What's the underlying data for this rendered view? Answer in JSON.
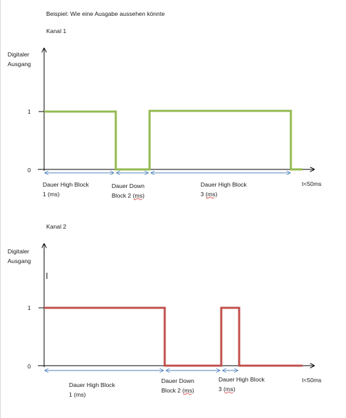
{
  "heading": "Beispiel: Wie eine Ausgabe aussehen könnte",
  "colors": {
    "channel1_signal": "#93b94e",
    "channel2_signal": "#c0504d",
    "axis": "#000000",
    "measure_arrow": "#4f81bd",
    "spellcheck_underline": "#e03030"
  },
  "channels": [
    {
      "title": "Kanal 1",
      "y_axis_label_line1": "Digitaler",
      "y_axis_label_line2": "Ausgang",
      "y_tick_high": "1",
      "y_tick_low": "0",
      "time_limit_label": "t<50ms",
      "signal_levels": [
        1,
        0,
        1,
        0
      ],
      "segments": [
        {
          "label_line1": "Dauer High Block",
          "label_line2": "1 (ms)"
        },
        {
          "label_line1": "Dauer Down",
          "label_line2": "Block 2 (ms)"
        },
        {
          "label_line1": "Dauer High Block",
          "label_line2": "3 (ms)"
        }
      ]
    },
    {
      "title": "Kanal 2",
      "y_axis_label_line1": "Digitaler",
      "y_axis_label_line2": "Ausgang",
      "y_tick_high": "1",
      "y_tick_low": "0",
      "time_limit_label": "t<50ms",
      "signal_levels": [
        1,
        0,
        1,
        0
      ],
      "segments": [
        {
          "label_line1": "Dauer High Block",
          "label_line2": "1 (ms)"
        },
        {
          "label_line1": "Dauer Down",
          "label_line2": "Block 2 (ms)"
        },
        {
          "label_line1": "Dauer High Block",
          "label_line2": "3 (ms)"
        }
      ]
    }
  ]
}
